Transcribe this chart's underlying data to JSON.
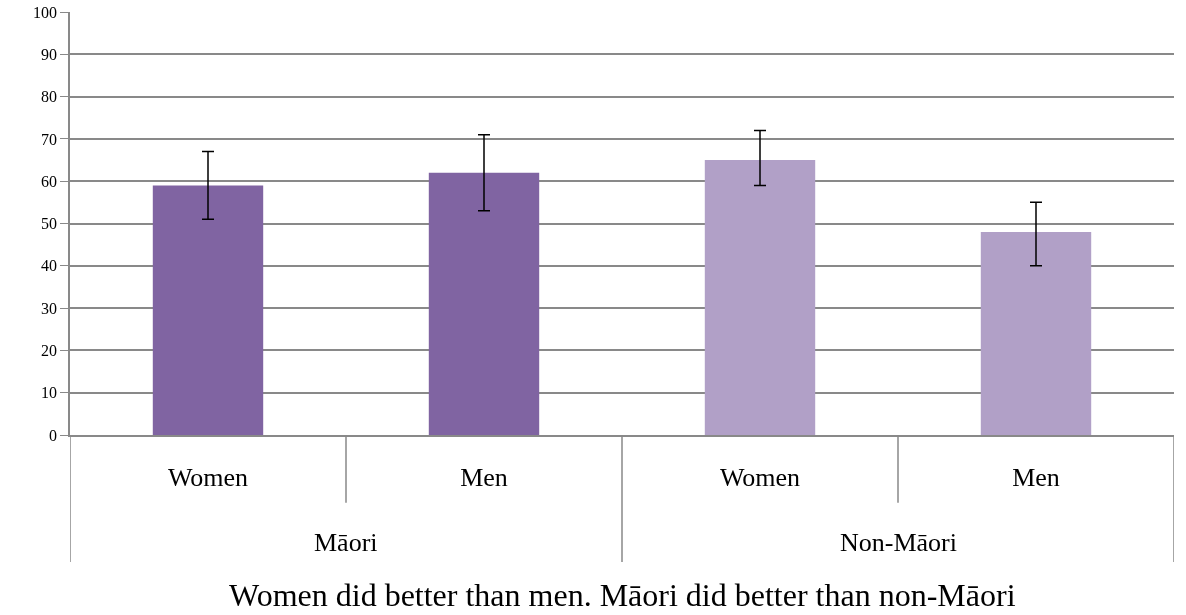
{
  "chart_data": {
    "type": "bar",
    "categories": [
      "Women",
      "Men",
      "Women",
      "Men"
    ],
    "values": [
      59,
      62,
      65,
      48
    ],
    "colors": [
      "#8064a2",
      "#8064a2",
      "#b1a0c7",
      "#b1a0c7"
    ],
    "errors": [
      [
        51,
        67
      ],
      [
        53,
        71
      ],
      [
        59,
        72
      ],
      [
        40,
        55
      ]
    ],
    "ylim": [
      0,
      100
    ],
    "yticks": [
      0,
      10,
      20,
      30,
      40,
      50,
      60,
      70,
      80,
      90,
      100
    ],
    "grid": "y",
    "annotations": [
      "Māori",
      "Non-Māori",
      "Women did better than men. Māori did better than non-Māori"
    ]
  }
}
